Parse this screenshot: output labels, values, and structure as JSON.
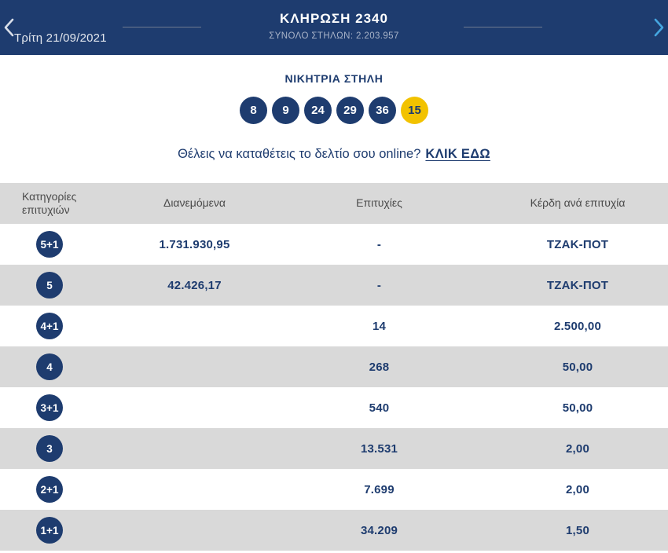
{
  "topbar": {
    "date": "Τρίτη 21/09/2021",
    "title": "ΚΛΗΡΩΣΗ 2340",
    "subtitle": "ΣΥΝΟΛΟ ΣΤΗΛΩΝ: 2.203.957"
  },
  "winning": {
    "heading": "ΝΙΚΗΤΡΙΑ ΣΤΗΛΗ",
    "numbers": [
      "8",
      "9",
      "24",
      "29",
      "36"
    ],
    "joker": "15"
  },
  "online_cta": {
    "text": "Θέλεις να καταθέτεις το δελτίο σου online?",
    "link": "ΚΛΙΚ ΕΔΩ"
  },
  "table": {
    "headers": [
      "Κατηγορίες επιτυχιών",
      "Διανεμόμενα",
      "Επιτυχίες",
      "Κέρδη ανά επιτυχία"
    ],
    "rows": [
      {
        "category": "5+1",
        "distributed": "1.731.930,95",
        "winners": "-",
        "prize": "ΤΖΑΚ-ΠΟΤ"
      },
      {
        "category": "5",
        "distributed": "42.426,17",
        "winners": "-",
        "prize": "ΤΖΑΚ-ΠΟΤ"
      },
      {
        "category": "4+1",
        "distributed": "",
        "winners": "14",
        "prize": "2.500,00"
      },
      {
        "category": "4",
        "distributed": "",
        "winners": "268",
        "prize": "50,00"
      },
      {
        "category": "3+1",
        "distributed": "",
        "winners": "540",
        "prize": "50,00"
      },
      {
        "category": "3",
        "distributed": "",
        "winners": "13.531",
        "prize": "2,00"
      },
      {
        "category": "2+1",
        "distributed": "",
        "winners": "7.699",
        "prize": "2,00"
      },
      {
        "category": "1+1",
        "distributed": "",
        "winners": "34.209",
        "prize": "1,50"
      }
    ]
  },
  "colors": {
    "navy": "#1e3c6f",
    "joker_yellow": "#f2c200",
    "row_gray": "#d9d9d9",
    "link_blue": "#45a6e0"
  }
}
